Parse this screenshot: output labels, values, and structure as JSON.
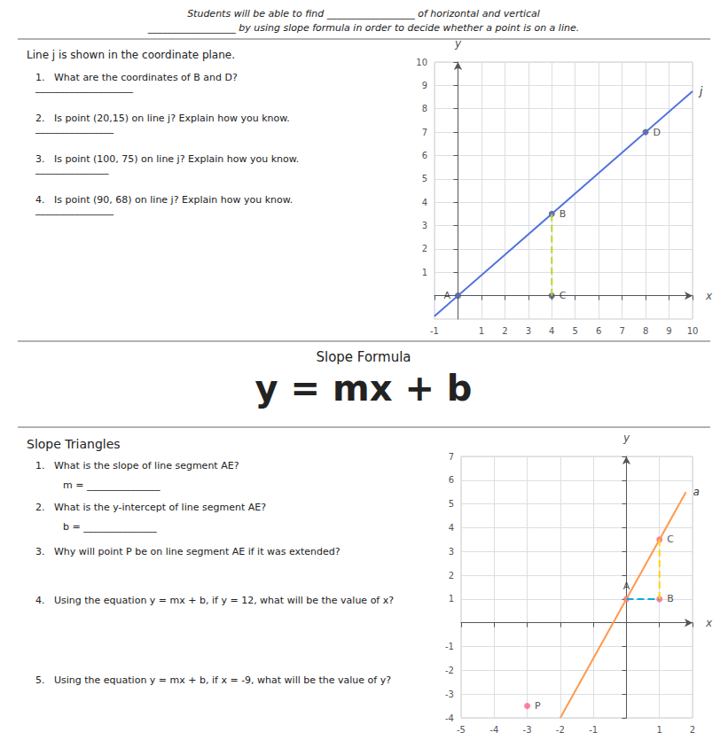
{
  "chart_data": [
    {
      "type": "scatter",
      "x_label": "x",
      "y_label": "y",
      "xlim": [
        -1,
        10
      ],
      "ylim": [
        -1,
        10
      ],
      "xticks": [
        -1,
        1,
        2,
        3,
        4,
        5,
        6,
        7,
        8,
        9,
        10
      ],
      "yticks": [
        1,
        2,
        3,
        4,
        5,
        6,
        7,
        8,
        9,
        10
      ],
      "grid": true,
      "annotations": [
        {
          "text": "Students will be able to find __________________ of horizontal and vertical"
        },
        {
          "text": "__________________ by using slope formula in order to decide whether a point is on a line."
        },
        {
          "text": "Line j is shown in the coordinate plane."
        },
        {
          "text": "1.   What are the coordinates of B and D?  ____________________"
        },
        {
          "text": "2.   Is point (20,15) on line j? Explain how you know. ________________"
        },
        {
          "text": "3.   Is point (100, 75) on line j? Explain how you know. _______________"
        },
        {
          "text": "4.   Is point (90, 68) on line j? Explain how you know. ________________"
        }
      ],
      "series": [
        {
          "name": "j",
          "type": "line",
          "x": [
            -1,
            10
          ],
          "values": [
            -0.875,
            8.75
          ]
        },
        {
          "type": "line",
          "line_style": "dashed",
          "x": [
            4,
            4
          ],
          "values": [
            0,
            3.5
          ]
        },
        {
          "type": "scatter",
          "marker": "circle",
          "x": [
            0,
            4,
            4,
            8
          ],
          "values": [
            0,
            3.5,
            0,
            7
          ],
          "labels": [
            "A",
            "B",
            "C",
            "D"
          ]
        }
      ]
    },
    {
      "type": "scatter",
      "x_label": "x",
      "y_label": "y",
      "xlim": [
        -5,
        2
      ],
      "ylim": [
        -4,
        7
      ],
      "xticks": [
        -5,
        -4,
        -3,
        -2,
        -1,
        1,
        2
      ],
      "yticks": [
        -4,
        -3,
        -2,
        -1,
        1,
        2,
        3,
        4,
        5,
        6,
        7
      ],
      "grid": true,
      "annotations": [
        {
          "text": "Slope Formula"
        },
        {
          "text": "y = mx + b"
        },
        {
          "text": "Slope Triangles"
        },
        {
          "text": "1.   What is the slope of line segment AE?"
        },
        {
          "text": "      m = _______________"
        },
        {
          "text": "2.   What is the y-intercept of line segment AE?"
        },
        {
          "text": "      b = _______________"
        },
        {
          "text": "3.   Why will point P be on line segment AE if it was extended?"
        },
        {
          "text": "4.   Using the equation y = mx + b, if y = 12, what will be the value of x?"
        },
        {
          "text": "5.   Using the equation y = mx + b, if x = -9, what will be the value of y?"
        }
      ],
      "series": [
        {
          "name": "a",
          "type": "line",
          "x": [
            -2.0,
            1.8
          ],
          "values": [
            -4.0,
            5.5
          ]
        },
        {
          "type": "line",
          "line_style": "dashed",
          "x": [
            0,
            1
          ],
          "values": [
            1,
            1
          ]
        },
        {
          "type": "line",
          "line_style": "dashed",
          "x": [
            1,
            1
          ],
          "values": [
            1,
            3.5
          ]
        },
        {
          "type": "scatter",
          "marker": "circle",
          "x": [
            0,
            1,
            1,
            -3
          ],
          "values": [
            1,
            1,
            3.5,
            -3.5
          ],
          "labels": [
            "A",
            "B",
            "C",
            "P"
          ]
        }
      ]
    }
  ]
}
